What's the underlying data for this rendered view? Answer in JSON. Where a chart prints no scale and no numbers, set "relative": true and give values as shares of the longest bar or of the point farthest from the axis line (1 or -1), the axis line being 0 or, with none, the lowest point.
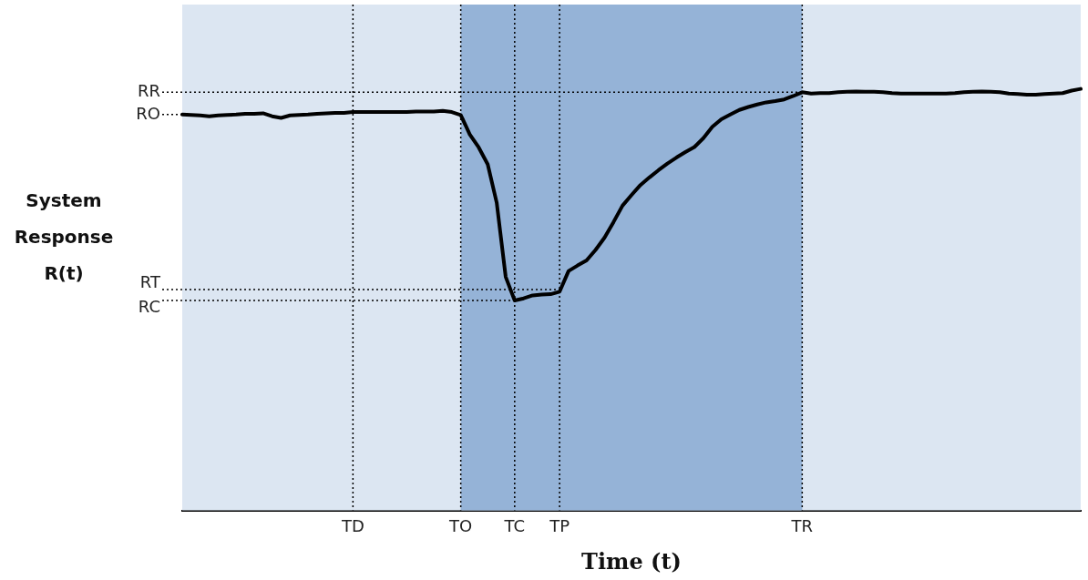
{
  "chart_data": {
    "type": "line",
    "xlabel": "Time (t)",
    "ylabel": "System Response R(t)",
    "relative": true,
    "categories": [
      null,
      null,
      null,
      null,
      null,
      null,
      null,
      null,
      null,
      null,
      null,
      null,
      null,
      null,
      null,
      null,
      null,
      null,
      null,
      "TD",
      null,
      null,
      null,
      null,
      null,
      null,
      null,
      null,
      null,
      null,
      null,
      "TO",
      null,
      null,
      null,
      null,
      null,
      "TC",
      null,
      null,
      null,
      null,
      "TP",
      null,
      null,
      null,
      null,
      null,
      null,
      null,
      null,
      null,
      null,
      null,
      null,
      null,
      null,
      null,
      null,
      null,
      null,
      null,
      null,
      null,
      null,
      null,
      null,
      null,
      null,
      "TR",
      null,
      null,
      null,
      null,
      null,
      null,
      null,
      null,
      null,
      null,
      null,
      null,
      null,
      null,
      null,
      null,
      null,
      null,
      null,
      null,
      null,
      null,
      null,
      null,
      null,
      null,
      null,
      null,
      null,
      null,
      null
    ],
    "series": [
      {
        "color": "#000000",
        "values": [
          0.939,
          0.938,
          0.937,
          0.935,
          0.937,
          0.938,
          0.939,
          0.941,
          0.941,
          0.942,
          0.935,
          0.931,
          0.937,
          0.938,
          0.939,
          0.941,
          0.942,
          0.943,
          0.943,
          0.945,
          0.945,
          0.945,
          0.945,
          0.945,
          0.945,
          0.945,
          0.946,
          0.946,
          0.946,
          0.948,
          0.945,
          0.938,
          0.892,
          0.861,
          0.821,
          0.73,
          0.554,
          0.498,
          0.503,
          0.51,
          0.512,
          0.513,
          0.519,
          0.568,
          0.581,
          0.593,
          0.618,
          0.647,
          0.684,
          0.723,
          0.748,
          0.772,
          0.79,
          0.807,
          0.823,
          0.837,
          0.85,
          0.862,
          0.883,
          0.91,
          0.928,
          0.939,
          0.95,
          0.957,
          0.963,
          0.968,
          0.971,
          0.975,
          0.983,
          0.992,
          0.989,
          0.99,
          0.99,
          0.992,
          0.993,
          0.994,
          0.993,
          0.993,
          0.992,
          0.99,
          0.989,
          0.989,
          0.989,
          0.989,
          0.989,
          0.989,
          0.99,
          0.992,
          0.993,
          0.994,
          0.993,
          0.992,
          0.989,
          0.988,
          0.986,
          0.986,
          0.988,
          0.989,
          0.99,
          0.996,
          1
        ]
      }
    ],
    "bands": [
      {
        "axis": "x",
        "from": "TO",
        "to": "TR",
        "color": "#95b3d7"
      }
    ],
    "ref_lines": [
      {
        "axis": "x",
        "value": "TD",
        "line_style": "dotted"
      },
      {
        "axis": "x",
        "value": "TO",
        "line_style": "dotted"
      },
      {
        "axis": "x",
        "value": "TC",
        "line_style": "dotted"
      },
      {
        "axis": "x",
        "value": "TP",
        "line_style": "dotted"
      },
      {
        "axis": "x",
        "value": "TR",
        "line_style": "dotted"
      },
      {
        "axis": "y",
        "value": 0.992,
        "line_style": "dotted",
        "label": "RR"
      },
      {
        "axis": "y",
        "value": 0.939,
        "line_style": "dotted",
        "label": "RO"
      },
      {
        "axis": "y",
        "value": 0.524,
        "line_style": "dotted",
        "label": "RT"
      },
      {
        "axis": "y",
        "value": 0.498,
        "line_style": "dotted",
        "label": "RC"
      }
    ],
    "legend": false,
    "marker": "none",
    "line_style": "solid"
  }
}
